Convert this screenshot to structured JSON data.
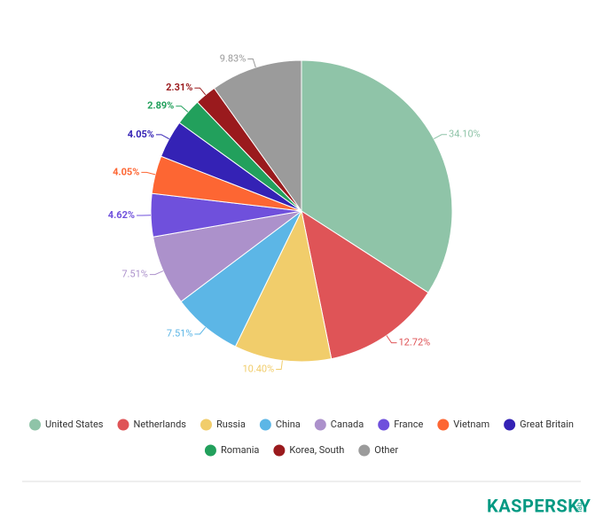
{
  "chart_data": {
    "type": "pie",
    "categories": [
      "United States",
      "Netherlands",
      "Russia",
      "China",
      "Canada",
      "France",
      "Vietnam",
      "Great Britain",
      "Romania",
      "Korea, South",
      "Other"
    ],
    "values": [
      34.1,
      12.72,
      10.4,
      7.51,
      7.51,
      4.62,
      4.05,
      4.05,
      2.89,
      2.31,
      9.83
    ],
    "value_labels": [
      "34.10%",
      "12.72%",
      "10.40%",
      "7.51%",
      "7.51%",
      "4.62%",
      "4.05%",
      "4.05%",
      "2.89%",
      "2.31%",
      "9.83%"
    ],
    "colors": [
      "#8fc4a8",
      "#df5457",
      "#f1cd6b",
      "#5cb6e6",
      "#ac91cb",
      "#6f50dc",
      "#fd6633",
      "#3422b5",
      "#22a05c",
      "#9a1a1d",
      "#9b9b9b"
    ],
    "legend": "bottom"
  },
  "logo": {
    "name": "KASPERSKY",
    "suffix": "lab"
  }
}
